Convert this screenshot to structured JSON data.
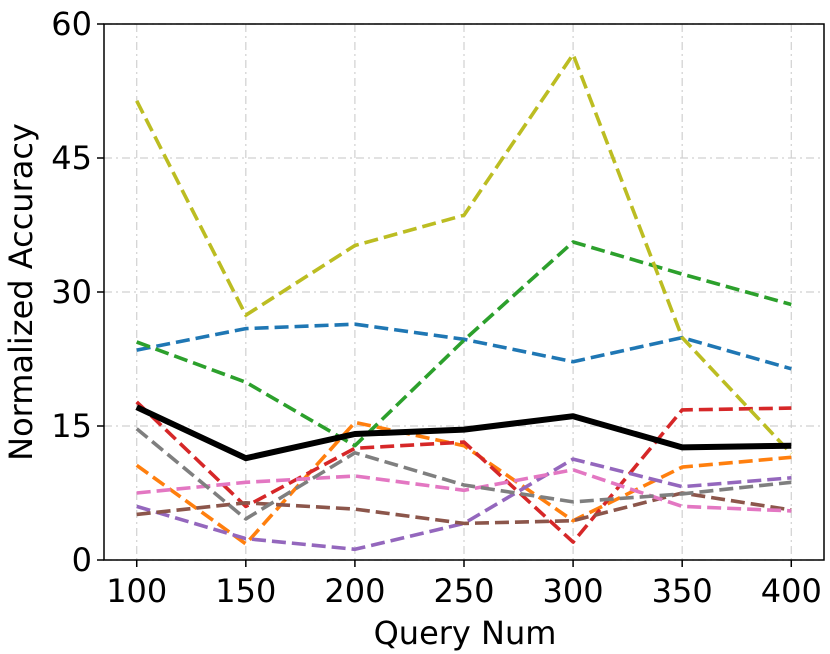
{
  "chart_data": {
    "type": "line",
    "title": "",
    "xlabel": "Query Num",
    "ylabel": "Normalized Accuracy",
    "xlim": [
      85,
      415
    ],
    "ylim": [
      0,
      60
    ],
    "xticks": [
      100,
      150,
      200,
      250,
      300,
      350,
      400
    ],
    "yticks": [
      0,
      15,
      30,
      45,
      60
    ],
    "grid": true,
    "legend": "none",
    "x": [
      100,
      150,
      200,
      250,
      300,
      350,
      400
    ],
    "series": [
      {
        "color": "#1f77b4",
        "dashed": true,
        "values": [
          23.5,
          25.9,
          26.4,
          24.7,
          22.2,
          24.9,
          21.4
        ]
      },
      {
        "color": "#ff7f0e",
        "dashed": true,
        "values": [
          10.6,
          1.8,
          15.4,
          12.8,
          4.4,
          10.4,
          11.5
        ]
      },
      {
        "color": "#2ca02c",
        "dashed": true,
        "values": [
          24.4,
          19.9,
          12.8,
          24.6,
          35.6,
          32.0,
          28.6
        ]
      },
      {
        "color": "#d62728",
        "dashed": true,
        "values": [
          17.7,
          6.0,
          12.5,
          13.2,
          2.0,
          16.8,
          17.0
        ]
      },
      {
        "color": "#9467bd",
        "dashed": true,
        "values": [
          6.0,
          2.4,
          1.2,
          4.1,
          11.3,
          8.2,
          9.2
        ]
      },
      {
        "color": "#8c564b",
        "dashed": true,
        "values": [
          5.1,
          6.4,
          5.7,
          4.1,
          4.4,
          7.5,
          5.6
        ]
      },
      {
        "color": "#e377c2",
        "dashed": true,
        "values": [
          7.5,
          8.7,
          9.4,
          7.8,
          10.1,
          6.0,
          5.5
        ]
      },
      {
        "color": "#7f7f7f",
        "dashed": true,
        "values": [
          14.7,
          4.6,
          12.0,
          8.4,
          6.5,
          7.4,
          8.7
        ]
      },
      {
        "color": "#bcbd22",
        "dashed": true,
        "values": [
          51.4,
          27.4,
          35.2,
          38.6,
          56.6,
          24.9,
          11.9
        ]
      },
      {
        "color": "#000000",
        "dashed": false,
        "bold": true,
        "values": [
          17.1,
          11.4,
          14.1,
          14.6,
          16.1,
          12.6,
          12.8
        ]
      }
    ]
  }
}
